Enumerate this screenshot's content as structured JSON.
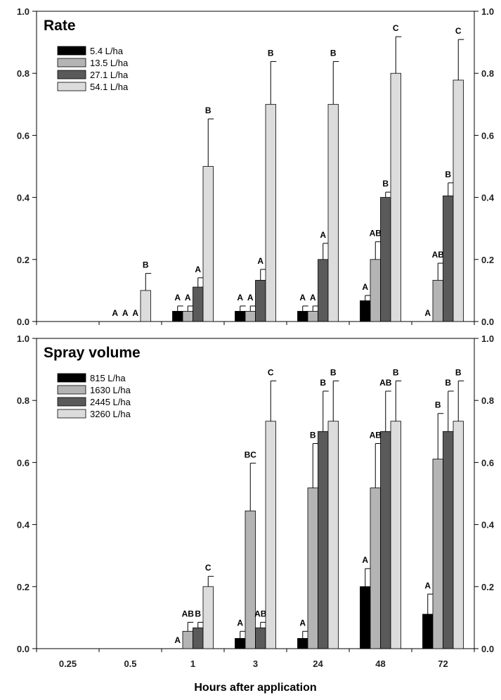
{
  "chart_data": [
    {
      "type": "bar",
      "title": "Rate",
      "categories": [
        "0.25",
        "0.5",
        "1",
        "3",
        "24",
        "48",
        "72"
      ],
      "ylim": [
        0,
        1.0
      ],
      "yticks": [
        "0.0",
        "0.2",
        "0.4",
        "0.6",
        "0.8",
        "1.0"
      ],
      "grid": false,
      "legend": "top-left",
      "series": [
        {
          "name": "5.4 L/ha",
          "color": "#000000",
          "values": [
            0,
            0,
            0.033,
            0.033,
            0.033,
            0.067,
            0
          ],
          "errors": [
            0,
            0,
            0.017,
            0.017,
            0.017,
            0.017,
            0
          ],
          "letters": [
            "",
            "A",
            "A",
            "A",
            "A",
            "A",
            "A"
          ]
        },
        {
          "name": "13.5 L/ha",
          "color": "#b4b4b4",
          "values": [
            0,
            0,
            0.033,
            0.033,
            0.033,
            0.2,
            0.133
          ],
          "errors": [
            0,
            0,
            0.017,
            0.017,
            0.017,
            0.057,
            0.055
          ],
          "letters": [
            "",
            "A",
            "A",
            "A",
            "A",
            "AB",
            "AB"
          ]
        },
        {
          "name": "27.1 L/ha",
          "color": "#5a5a5a",
          "values": [
            0,
            0,
            0.111,
            0.133,
            0.2,
            0.4,
            0.405
          ],
          "errors": [
            0,
            0,
            0.03,
            0.035,
            0.052,
            0.017,
            0.042
          ],
          "letters": [
            "",
            "A",
            "A",
            "A",
            "A",
            "B",
            "B"
          ]
        },
        {
          "name": "54.1 L/ha",
          "color": "#dcdcdc",
          "values": [
            0,
            0.1,
            0.5,
            0.7,
            0.7,
            0.8,
            0.778
          ],
          "errors": [
            0,
            0.055,
            0.153,
            0.138,
            0.138,
            0.118,
            0.131
          ],
          "letters": [
            "",
            "B",
            "B",
            "B",
            "B",
            "C",
            "C"
          ]
        }
      ]
    },
    {
      "type": "bar",
      "title": "Spray volume",
      "categories": [
        "0.25",
        "0.5",
        "1",
        "3",
        "24",
        "48",
        "72"
      ],
      "ylim": [
        0,
        1.0
      ],
      "yticks": [
        "0.0",
        "0.2",
        "0.4",
        "0.6",
        "0.8",
        "1.0"
      ],
      "xlabel": "Hours after application",
      "grid": false,
      "legend": "top-left",
      "series": [
        {
          "name": "815 L/ha",
          "color": "#000000",
          "values": [
            0,
            0,
            0,
            0.033,
            0.033,
            0.2,
            0.111
          ],
          "errors": [
            0,
            0,
            0,
            0.023,
            0.023,
            0.058,
            0.065
          ],
          "letters": [
            "",
            "",
            "A",
            "A",
            "A",
            "A",
            "A"
          ]
        },
        {
          "name": "1630 L/ha",
          "color": "#b4b4b4",
          "values": [
            0,
            0,
            0.056,
            0.444,
            0.518,
            0.518,
            0.611
          ],
          "errors": [
            0,
            0,
            0.029,
            0.154,
            0.143,
            0.143,
            0.147
          ],
          "letters": [
            "",
            "",
            "AB",
            "BC",
            "B",
            "AB",
            "B"
          ]
        },
        {
          "name": "2445 L/ha",
          "color": "#5a5a5a",
          "values": [
            0,
            0,
            0.067,
            0.067,
            0.7,
            0.7,
            0.7
          ],
          "errors": [
            0,
            0,
            0.018,
            0.018,
            0.13,
            0.13,
            0.13
          ],
          "letters": [
            "",
            "",
            "B",
            "AB",
            "B",
            "AB",
            "B"
          ]
        },
        {
          "name": "3260 L/ha",
          "color": "#dcdcdc",
          "values": [
            0,
            0,
            0.2,
            0.733,
            0.733,
            0.733,
            0.733
          ],
          "errors": [
            0,
            0,
            0.033,
            0.13,
            0.13,
            0.13,
            0.13
          ],
          "letters": [
            "",
            "",
            "C",
            "C",
            "B",
            "B",
            "B"
          ]
        }
      ]
    }
  ]
}
